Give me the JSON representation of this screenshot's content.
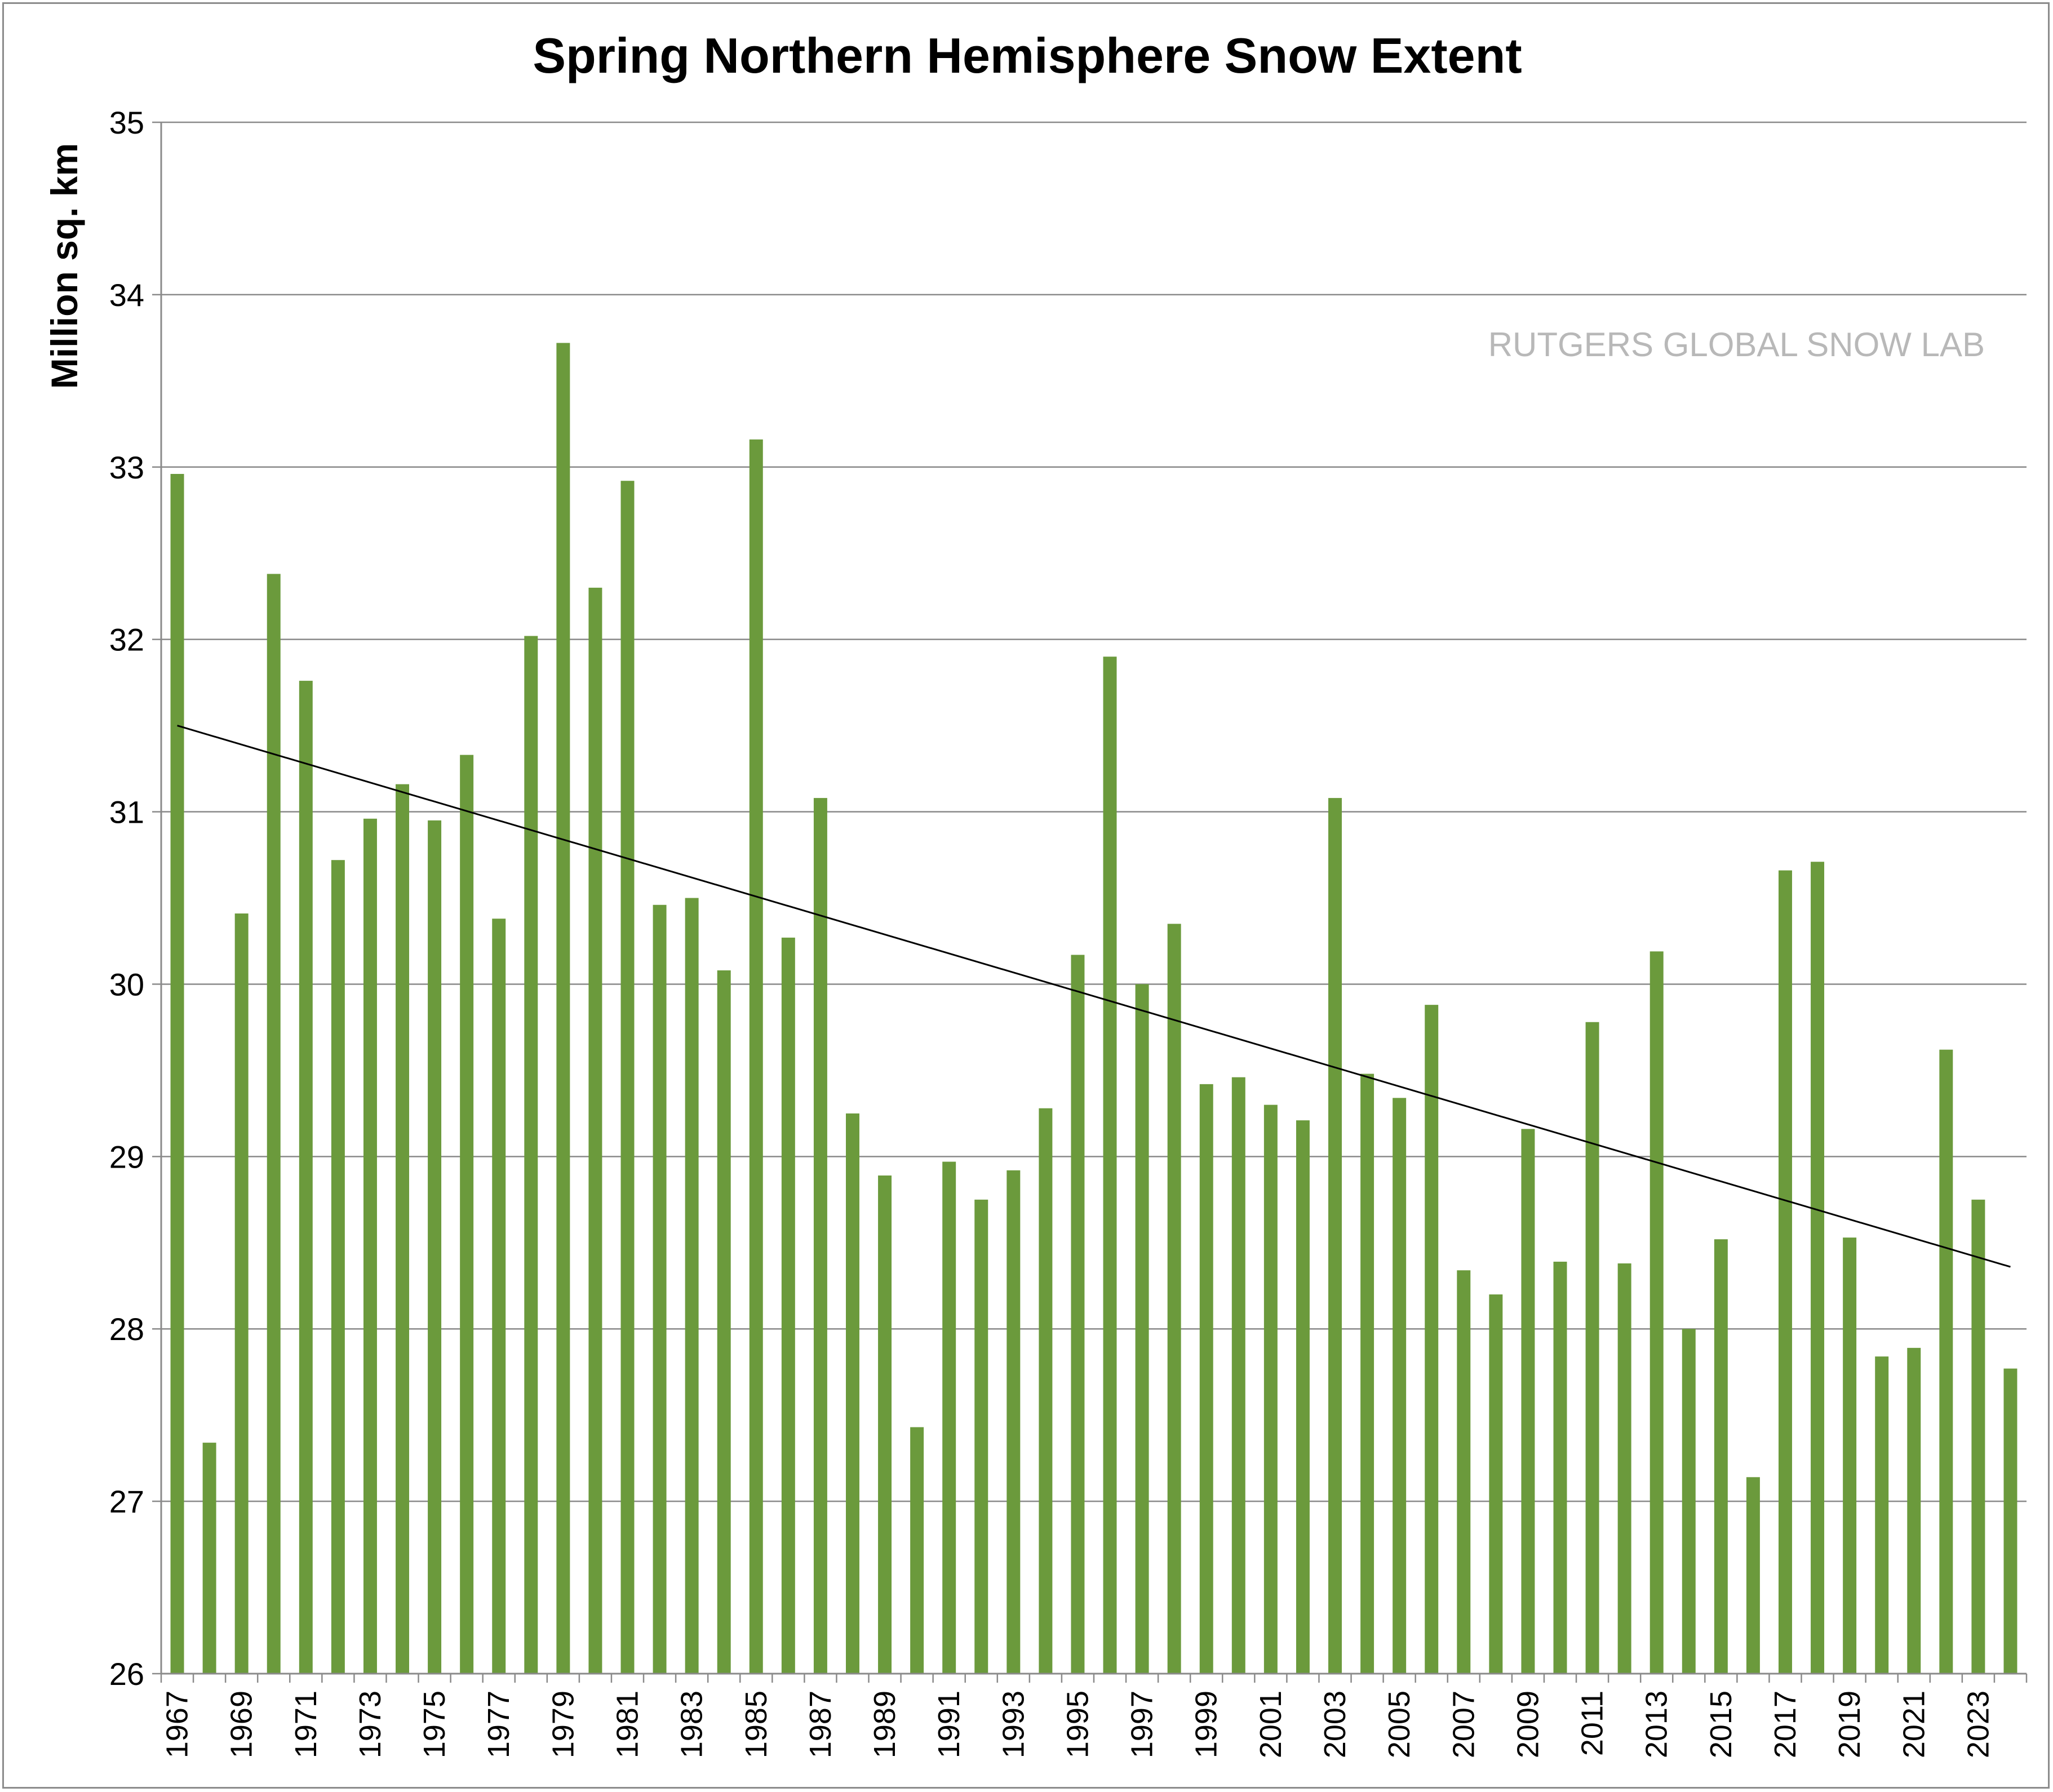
{
  "chart_data": {
    "type": "bar",
    "title": "Spring Northern Hemisphere Snow Extent",
    "ylabel": "Million sq. km",
    "xlabel": "",
    "watermark": "RUTGERS GLOBAL SNOW LAB",
    "ylim": [
      26,
      35
    ],
    "y_ticks": [
      "26",
      "27",
      "28",
      "29",
      "30",
      "31",
      "32",
      "33",
      "34",
      "35"
    ],
    "grid": true,
    "categories": [
      "1967",
      "1968",
      "1969",
      "1970",
      "1971",
      "1972",
      "1973",
      "1974",
      "1975",
      "1976",
      "1977",
      "1978",
      "1979",
      "1980",
      "1981",
      "1982",
      "1983",
      "1984",
      "1985",
      "1986",
      "1987",
      "1988",
      "1989",
      "1990",
      "1991",
      "1992",
      "1993",
      "1994",
      "1995",
      "1996",
      "1997",
      "1998",
      "1999",
      "2000",
      "2001",
      "2002",
      "2003",
      "2004",
      "2005",
      "2006",
      "2007",
      "2008",
      "2009",
      "2010",
      "2011",
      "2012",
      "2013",
      "2014",
      "2015",
      "2016",
      "2017",
      "2018",
      "2019",
      "2020",
      "2021",
      "2022",
      "2023",
      "2024"
    ],
    "x_tick_labels": [
      "1967",
      "1969",
      "1971",
      "1973",
      "1975",
      "1977",
      "1979",
      "1981",
      "1983",
      "1985",
      "1987",
      "1989",
      "1991",
      "1993",
      "1995",
      "1997",
      "1999",
      "2001",
      "2003",
      "2005",
      "2007",
      "2009",
      "2011",
      "2013",
      "2015",
      "2017",
      "2019",
      "2021",
      "2023"
    ],
    "series": [
      {
        "values": [
          32.96,
          27.34,
          30.41,
          32.38,
          31.76,
          30.72,
          30.96,
          31.16,
          30.95,
          31.33,
          30.38,
          32.02,
          33.72,
          32.3,
          32.92,
          30.46,
          30.5,
          30.08,
          33.16,
          30.27,
          31.08,
          29.25,
          28.89,
          27.43,
          28.97,
          28.75,
          28.92,
          29.28,
          30.17,
          31.9,
          30.0,
          30.35,
          29.42,
          29.46,
          29.3,
          29.21,
          31.08,
          29.48,
          29.34,
          29.88,
          28.34,
          28.2,
          29.16,
          28.39,
          29.78,
          28.38,
          30.19,
          28.0,
          28.52,
          27.14,
          30.66,
          30.71,
          28.53,
          27.84,
          27.89,
          29.62,
          28.75,
          27.77
        ],
        "color": "#6b9a3c"
      }
    ],
    "trendline": {
      "start": [
        1967,
        31.5
      ],
      "end": [
        2024,
        28.36
      ],
      "color": "#000000"
    }
  }
}
